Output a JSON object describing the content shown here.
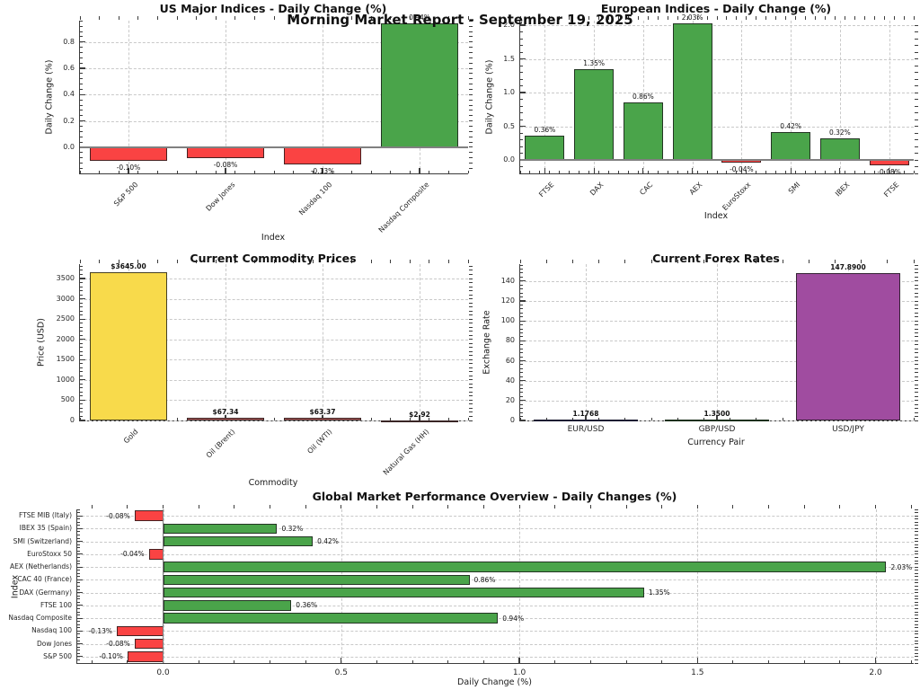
{
  "report": {
    "suptitle": "Morning Market Report - September 19, 2025"
  },
  "chart_data": [
    {
      "id": "us-indices",
      "type": "bar",
      "title": "US Major Indices - Daily Change (%)",
      "xlabel": "Index",
      "ylabel": "Daily Change (%)",
      "categories": [
        "S&P 500",
        "Dow Jones",
        "Nasdaq 100",
        "Nasdaq Composite"
      ],
      "values": [
        -0.1,
        -0.08,
        -0.13,
        0.94
      ],
      "value_labels": [
        "-0.10%",
        "-0.08%",
        "-0.13%",
        "0.94%"
      ],
      "bar_colors": [
        "#fa4343",
        "#fa4343",
        "#fa4343",
        "#4aa44a"
      ],
      "ylim": [
        -0.198,
        0.962
      ],
      "yticks": [
        0.0,
        0.2,
        0.4,
        0.6,
        0.8
      ],
      "ytick_labels": [
        "0.0",
        "0.2",
        "0.4",
        "0.6",
        "0.8"
      ],
      "tick_rotation": 45,
      "value_label_bold": false,
      "grid": true,
      "zero_line": true
    },
    {
      "id": "european-indices",
      "type": "bar",
      "title": "European Indices - Daily Change (%)",
      "xlabel": "Index",
      "ylabel": "Daily Change (%)",
      "categories": [
        "FTSE",
        "DAX",
        "CAC",
        "AEX",
        "EuroStoxx",
        "SMI",
        "IBEX",
        "FTSE"
      ],
      "values": [
        0.36,
        1.35,
        0.86,
        2.03,
        -0.04,
        0.42,
        0.32,
        -0.08
      ],
      "value_labels": [
        "0.36%",
        "1.35%",
        "0.86%",
        "2.03%",
        "-0.04%",
        "0.42%",
        "0.32%",
        "-0.08%"
      ],
      "bar_colors": [
        "#4aa44a",
        "#4aa44a",
        "#4aa44a",
        "#4aa44a",
        "#fa4343",
        "#4aa44a",
        "#4aa44a",
        "#fa4343"
      ],
      "ylim": [
        -0.2,
        2.067
      ],
      "yticks": [
        0.0,
        0.5,
        1.0,
        1.5,
        2.0
      ],
      "ytick_labels": [
        "0.0",
        "0.5",
        "1.0",
        "1.5",
        "2.0"
      ],
      "tick_rotation": 45,
      "value_label_bold": false,
      "grid": true,
      "zero_line": true
    },
    {
      "id": "commodities",
      "type": "bar",
      "title": "Current Commodity Prices",
      "xlabel": "Commodity",
      "ylabel": "Price (USD)",
      "categories": [
        "Gold",
        "Oil (Brent)",
        "Oil (WTI)",
        "Natural Gas (HH)"
      ],
      "values": [
        3645.0,
        67.34,
        63.37,
        2.92
      ],
      "value_labels": [
        "$3645.00",
        "$67.34",
        "$63.37",
        "$2.92"
      ],
      "bar_colors": [
        "#f8da4b",
        "#b85d5d",
        "#b85d5d",
        "#b85d5d"
      ],
      "ylim": [
        0,
        3855
      ],
      "yticks": [
        0,
        500,
        1000,
        1500,
        2000,
        2500,
        3000,
        3500
      ],
      "ytick_labels": [
        "0",
        "500",
        "1000",
        "1500",
        "2000",
        "2500",
        "3000",
        "3500"
      ],
      "tick_rotation": 45,
      "value_label_bold": true,
      "grid": true,
      "zero_line": false
    },
    {
      "id": "forex",
      "type": "bar",
      "title": "Current Forex Rates",
      "xlabel": "Currency Pair",
      "ylabel": "Exchange Rate",
      "categories": [
        "EUR/USD",
        "GBP/USD",
        "USD/JPY"
      ],
      "values": [
        1.1768,
        1.35,
        147.89
      ],
      "value_labels": [
        "1.1768",
        "1.3500",
        "147.8900"
      ],
      "bar_colors": [
        "#31319b",
        "#2f8b2f",
        "#a04ca0"
      ],
      "ylim": [
        0,
        157
      ],
      "yticks": [
        0,
        20,
        40,
        60,
        80,
        100,
        120,
        140
      ],
      "ytick_labels": [
        "0",
        "20",
        "40",
        "60",
        "80",
        "100",
        "120",
        "140"
      ],
      "tick_rotation": 0,
      "value_label_bold": true,
      "grid": true,
      "zero_line": false
    },
    {
      "id": "global-overview",
      "type": "bar-horizontal",
      "title": "Global Market Performance Overview - Daily Changes (%)",
      "xlabel": "Daily Change (%)",
      "ylabel": "Index",
      "categories": [
        "FTSE MIB (Italy)",
        "IBEX 35 (Spain)",
        "SMI (Switzerland)",
        "EuroStoxx 50",
        "AEX (Netherlands)",
        "CAC 40 (France)",
        "DAX (Germany)",
        "FTSE 100",
        "Nasdaq Composite",
        "Nasdaq 100",
        "Dow Jones",
        "S&P 500"
      ],
      "values": [
        -0.08,
        0.32,
        0.42,
        -0.04,
        2.03,
        0.86,
        1.35,
        0.36,
        0.94,
        -0.13,
        -0.08,
        -0.1
      ],
      "value_labels": [
        "-0.08%",
        "0.32%",
        "0.42%",
        "-0.04%",
        "2.03%",
        "0.86%",
        "1.35%",
        "0.36%",
        "0.94%",
        "-0.13%",
        "-0.08%",
        "-0.10%"
      ],
      "bar_colors": [
        "#fa4343",
        "#4aa44a",
        "#4aa44a",
        "#fa4343",
        "#4aa44a",
        "#4aa44a",
        "#4aa44a",
        "#4aa44a",
        "#4aa44a",
        "#fa4343",
        "#fa4343",
        "#fa4343"
      ],
      "xlim": [
        -0.241,
        2.107
      ],
      "xticks": [
        0.0,
        0.5,
        1.0,
        1.5,
        2.0
      ],
      "xtick_labels": [
        "0.0",
        "0.5",
        "1.0",
        "1.5",
        "2.0"
      ],
      "value_label_bold": false,
      "grid": true,
      "zero_line": true
    }
  ]
}
